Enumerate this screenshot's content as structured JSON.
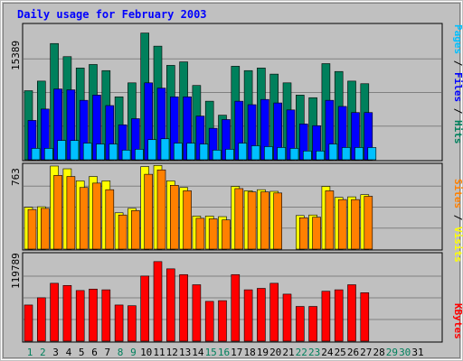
{
  "chart_data": [
    {
      "type": "bar",
      "title": "Daily usage for February 2003",
      "x": [
        "1",
        "2",
        "3",
        "4",
        "5",
        "6",
        "7",
        "8",
        "9",
        "10",
        "11",
        "12",
        "13",
        "14",
        "15",
        "16",
        "17",
        "18",
        "19",
        "20",
        "21",
        "22",
        "23",
        "24",
        "25",
        "26",
        "27",
        "28",
        "29",
        "30",
        "31"
      ],
      "weekend_days": [
        "1",
        "2",
        "8",
        "9",
        "15",
        "16",
        "22",
        "23",
        "29",
        "30"
      ],
      "ymax_label": "15389",
      "ylim": [
        0,
        15389
      ],
      "series": [
        {
          "name": "Hits",
          "color": "#00805c",
          "values": [
            7900,
            9000,
            13300,
            11800,
            10500,
            10900,
            10200,
            7200,
            8800,
            14500,
            13000,
            10800,
            11200,
            8500,
            6700,
            5100,
            10700,
            10200,
            10500,
            9800,
            8800,
            7400,
            7100,
            11000,
            10100,
            9000,
            8700,
            0,
            0,
            0,
            0
          ]
        },
        {
          "name": "Files",
          "color": "#0000ff",
          "values": [
            4500,
            5800,
            8100,
            8000,
            6800,
            7400,
            6200,
            4000,
            4700,
            8800,
            8200,
            7200,
            7200,
            5000,
            3600,
            4600,
            6700,
            6300,
            6900,
            6500,
            5700,
            4100,
            3900,
            6800,
            6100,
            5400,
            5400,
            0,
            0,
            0,
            0
          ]
        },
        {
          "name": "Pages",
          "color": "#00c0ff",
          "values": [
            1300,
            1300,
            2200,
            2200,
            1900,
            1800,
            1800,
            1100,
            1200,
            2300,
            2400,
            1900,
            1900,
            1800,
            1100,
            1200,
            1900,
            1600,
            1500,
            1400,
            1300,
            1000,
            1000,
            1800,
            1400,
            1400,
            1400,
            0,
            0,
            0,
            0
          ]
        }
      ],
      "right_labels": [
        {
          "text": "Pages",
          "color": "#00c0ff"
        },
        {
          "text": " / ",
          "color": "#000000"
        },
        {
          "text": "Files",
          "color": "#0000ff"
        },
        {
          "text": " / ",
          "color": "#000000"
        },
        {
          "text": "Hits",
          "color": "#00805c"
        }
      ]
    },
    {
      "type": "bar",
      "ymax_label": "763",
      "ylim": [
        0,
        763
      ],
      "series": [
        {
          "name": "Visits",
          "color": "#ffff00",
          "values": [
            380,
            385,
            755,
            730,
            620,
            660,
            620,
            330,
            370,
            750,
            760,
            620,
            560,
            300,
            300,
            295,
            570,
            530,
            540,
            525,
            0,
            305,
            310,
            570,
            470,
            475,
            495,
            0,
            0,
            0,
            0
          ]
        },
        {
          "name": "Sites",
          "color": "#ff8000",
          "values": [
            360,
            370,
            670,
            660,
            560,
            600,
            540,
            310,
            350,
            680,
            720,
            580,
            530,
            280,
            275,
            265,
            550,
            520,
            520,
            510,
            0,
            285,
            290,
            530,
            450,
            450,
            480,
            0,
            0,
            0,
            0
          ]
        }
      ],
      "right_labels": [
        {
          "text": "Sites",
          "color": "#ff8000"
        },
        {
          "text": " / ",
          "color": "#000000"
        },
        {
          "text": "Visits",
          "color": "#ffff00"
        }
      ]
    },
    {
      "type": "bar",
      "ymax_label": "119789",
      "ylim": [
        0,
        119789
      ],
      "series": [
        {
          "name": "KBytes",
          "color": "#ff0000",
          "values": [
            50000,
            60000,
            80000,
            77000,
            70000,
            72000,
            71000,
            50000,
            49000,
            90000,
            110000,
            100000,
            92000,
            78000,
            55000,
            56000,
            92000,
            71000,
            73000,
            80000,
            65000,
            48000,
            48000,
            69000,
            71000,
            78000,
            67000,
            0,
            0,
            0,
            0
          ]
        }
      ],
      "right_labels": [
        {
          "text": "KBytes",
          "color": "#ff0000"
        }
      ]
    }
  ]
}
